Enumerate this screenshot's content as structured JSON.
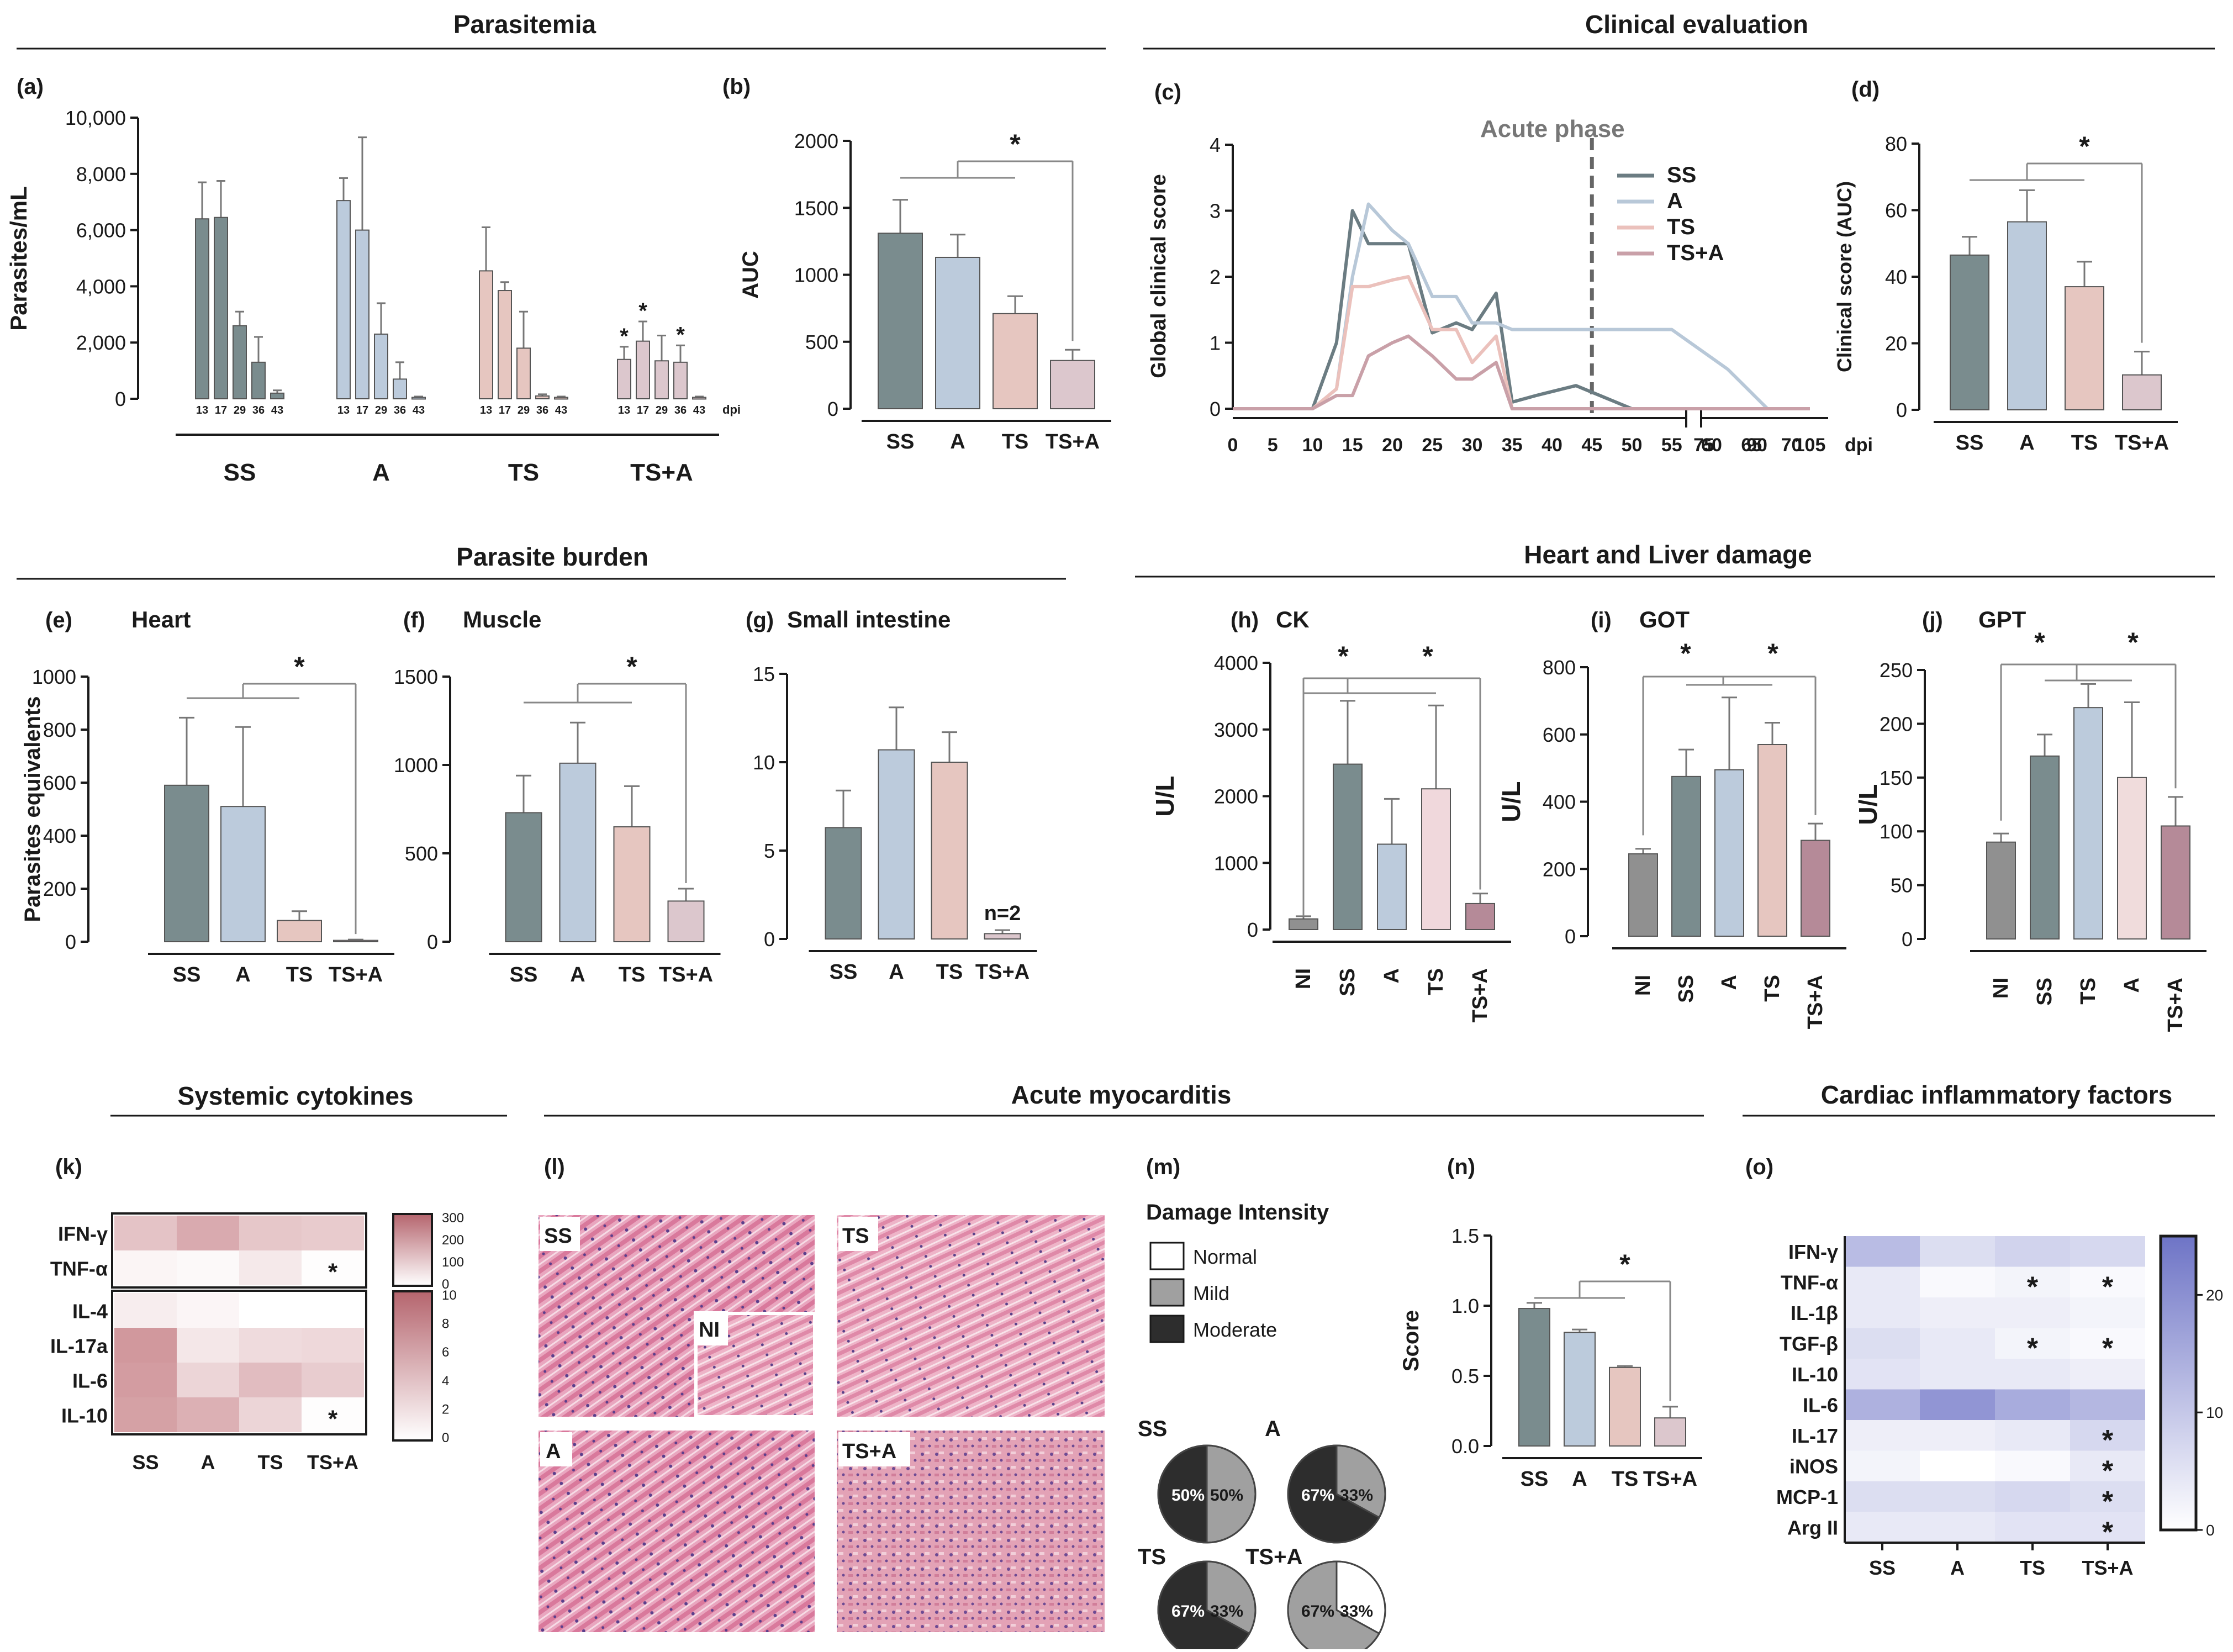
{
  "sections": {
    "parasitemia": "Parasitemia",
    "clinical": "Clinical evaluation",
    "burden": "Parasite burden",
    "damage": "Heart and Liver damage",
    "systemic": "Systemic cytokines",
    "myocarditis": "Acute myocarditis",
    "cardiac": "Cardiac inflammatory factors"
  },
  "panel_labels": {
    "a": "(a)",
    "b": "(b)",
    "c": "(c)",
    "d": "(d)",
    "e": "(e)",
    "f": "(f)",
    "g": "(g)",
    "h": "(h)",
    "i": "(i)",
    "j": "(j)",
    "k": "(k)",
    "l": "(l)",
    "m": "(m)",
    "n": "(n)",
    "o": "(o)"
  },
  "colors": {
    "SS": "#7a8c8e",
    "A": "#bccbdc",
    "TS": "#e6c6c0",
    "TS+A": "#dcc7cd",
    "NI": "#909090",
    "TS_j": "#e8cfd0",
    "A_j": "#f0dcdc",
    "TSA_h": "#b58a98",
    "TS_h": "#f0d8dc",
    "ss_line": "#6b7c82",
    "a_line": "#b8c8d8",
    "ts_line": "#ebc1bc",
    "tsa_line": "#c9a0a8",
    "pie_dark": "#2d2d2d",
    "pie_mild": "#a0a0a0",
    "heat_k": "#d9a9ad",
    "heat_o": "#7f85cd"
  },
  "chart_data": [
    {
      "id": "a",
      "type": "bar",
      "title": "",
      "ylabel": "Parasites/mL",
      "xlabel": "dpi",
      "ylim": [
        0,
        10000
      ],
      "yticks": [
        "0",
        "2,000",
        "4,000",
        "6,000",
        "8,000",
        "10,000"
      ],
      "dpi_labels": [
        "13",
        "17",
        "29",
        "36",
        "43"
      ],
      "groups": [
        {
          "name": "SS",
          "values": [
            6400,
            6450,
            2600,
            1300,
            200
          ],
          "errors": [
            1300,
            1300,
            500,
            900,
            100
          ]
        },
        {
          "name": "A",
          "values": [
            7050,
            6000,
            2300,
            700,
            50
          ],
          "errors": [
            800,
            3300,
            1100,
            600,
            30
          ]
        },
        {
          "name": "TS",
          "values": [
            4550,
            3850,
            1800,
            100,
            50
          ],
          "errors": [
            1550,
            300,
            1300,
            60,
            30
          ]
        },
        {
          "name": "TS+A",
          "values": [
            1400,
            2050,
            1350,
            1300,
            50
          ],
          "errors": [
            450,
            700,
            900,
            600,
            30
          ],
          "stars": [
            true,
            true,
            false,
            true,
            false
          ]
        }
      ],
      "star": "*"
    },
    {
      "id": "b",
      "type": "bar",
      "ylabel": "AUC",
      "ylim": [
        0,
        2000
      ],
      "yticks": [
        "0",
        "500",
        "1000",
        "1500",
        "2000"
      ],
      "categories": [
        "SS",
        "A",
        "TS",
        "TS+A"
      ],
      "values": [
        1310,
        1130,
        710,
        360
      ],
      "errors": [
        250,
        170,
        130,
        80
      ],
      "sig": "*"
    },
    {
      "id": "c",
      "type": "line",
      "ylabel": "Global clinical score",
      "xlabel": "dpi",
      "ylim": [
        0,
        4
      ],
      "yticks": [
        "0",
        "1",
        "2",
        "3",
        "4"
      ],
      "xticks": [
        "0",
        "5",
        "10",
        "15",
        "20",
        "25",
        "30",
        "35",
        "40",
        "45",
        "50",
        "55",
        "60",
        "65",
        "70",
        "75",
        "90",
        "105"
      ],
      "annotation": "Acute phase",
      "phase_x": 45,
      "series": [
        {
          "name": "SS",
          "x": [
            0,
            10,
            13,
            15,
            17,
            20,
            22,
            25,
            28,
            30,
            33,
            35,
            38,
            43,
            47,
            50,
            105
          ],
          "y": [
            0,
            0,
            1.0,
            3.0,
            2.5,
            2.5,
            2.5,
            1.15,
            1.3,
            1.2,
            1.75,
            0.1,
            0.2,
            0.35,
            0.15,
            0,
            0
          ]
        },
        {
          "name": "A",
          "x": [
            0,
            10,
            13,
            15,
            17,
            20,
            22,
            25,
            28,
            30,
            33,
            35,
            38,
            50,
            55,
            62,
            67,
            105
          ],
          "y": [
            0,
            0,
            0.3,
            2.0,
            3.1,
            2.7,
            2.5,
            1.7,
            1.7,
            1.3,
            1.3,
            1.2,
            1.2,
            1.2,
            1.2,
            0.6,
            0,
            0
          ]
        },
        {
          "name": "TS",
          "x": [
            0,
            10,
            13,
            15,
            17,
            20,
            22,
            25,
            28,
            30,
            33,
            35,
            38,
            105
          ],
          "y": [
            0,
            0,
            0.3,
            1.85,
            1.85,
            1.95,
            2.0,
            1.2,
            1.2,
            0.7,
            1.1,
            0,
            0,
            0
          ]
        },
        {
          "name": "TS+A",
          "x": [
            0,
            10,
            13,
            15,
            17,
            20,
            22,
            25,
            28,
            30,
            33,
            35,
            38,
            105
          ],
          "y": [
            0,
            0,
            0.2,
            0.2,
            0.8,
            1.0,
            1.1,
            0.8,
            0.45,
            0.45,
            0.7,
            0,
            0,
            0
          ]
        }
      ]
    },
    {
      "id": "d",
      "type": "bar",
      "ylabel": "Clinical score (AUC)",
      "ylim": [
        0,
        80
      ],
      "yticks": [
        "0",
        "20",
        "40",
        "60",
        "80"
      ],
      "categories": [
        "SS",
        "A",
        "TS",
        "TS+A"
      ],
      "values": [
        46.5,
        56.5,
        37,
        10.5
      ],
      "errors": [
        5.5,
        9.5,
        7.5,
        7
      ],
      "sig": "*"
    },
    {
      "id": "e",
      "type": "bar",
      "title": "Heart",
      "ylabel": "Parasites equivalents",
      "ylim": [
        0,
        1000
      ],
      "yticks": [
        "0",
        "200",
        "400",
        "600",
        "800",
        "1000"
      ],
      "categories": [
        "SS",
        "A",
        "TS",
        "TS+A"
      ],
      "values": [
        590,
        510,
        80,
        5
      ],
      "errors": [
        255,
        300,
        35,
        3
      ],
      "sig": "*"
    },
    {
      "id": "f",
      "type": "bar",
      "title": "Muscle",
      "ylim": [
        0,
        1500
      ],
      "yticks": [
        "0",
        "500",
        "1000",
        "1500"
      ],
      "categories": [
        "SS",
        "A",
        "TS",
        "TS+A"
      ],
      "values": [
        730,
        1010,
        650,
        230
      ],
      "errors": [
        210,
        230,
        230,
        70
      ],
      "sig": "*"
    },
    {
      "id": "g",
      "type": "bar",
      "title": "Small intestine",
      "ylim": [
        0,
        15
      ],
      "yticks": [
        "0",
        "5",
        "10",
        "15"
      ],
      "categories": [
        "SS",
        "A",
        "TS",
        "TS+A"
      ],
      "values": [
        6.3,
        10.7,
        10.0,
        0.3
      ],
      "errors": [
        2.1,
        2.4,
        1.7,
        0.2
      ],
      "note": "n=2"
    },
    {
      "id": "h",
      "type": "bar",
      "title": "CK",
      "ylabel": "U/L",
      "ylim": [
        0,
        4000
      ],
      "yticks": [
        "0",
        "1000",
        "2000",
        "3000",
        "4000"
      ],
      "categories": [
        "NI",
        "SS",
        "A",
        "TS",
        "TS+A"
      ],
      "values": [
        160,
        2480,
        1280,
        2110,
        390
      ],
      "errors": [
        40,
        950,
        680,
        1250,
        150
      ],
      "sig": "*"
    },
    {
      "id": "i",
      "type": "bar",
      "title": "GOT",
      "ylabel": "U/L",
      "ylim": [
        0,
        800
      ],
      "yticks": [
        "0",
        "200",
        "400",
        "600",
        "800"
      ],
      "categories": [
        "NI",
        "SS",
        "A",
        "TS",
        "TS+A"
      ],
      "values": [
        245,
        475,
        495,
        570,
        285
      ],
      "errors": [
        15,
        80,
        215,
        65,
        50
      ],
      "sig": "*"
    },
    {
      "id": "j",
      "type": "bar",
      "title": "GPT",
      "ylabel": "U/L",
      "ylim": [
        0,
        250
      ],
      "yticks": [
        "0",
        "50",
        "100",
        "150",
        "200",
        "250"
      ],
      "categories": [
        "NI",
        "SS",
        "TS",
        "A",
        "TS+A"
      ],
      "values": [
        90,
        170,
        215,
        150,
        105
      ],
      "errors": [
        8,
        20,
        22,
        70,
        27
      ],
      "sig": "*"
    },
    {
      "id": "k",
      "type": "heatmap",
      "columns": [
        "SS",
        "A",
        "TS",
        "TS+A"
      ],
      "rows_top": [
        "IFN-γ",
        "TNF-α"
      ],
      "values_top": [
        [
          150,
          210,
          140,
          130
        ],
        [
          25,
          15,
          55,
          5
        ]
      ],
      "stars_top": [
        [
          false,
          false,
          false,
          false
        ],
        [
          false,
          false,
          false,
          true
        ]
      ],
      "scale_top": [
        "300",
        "200",
        "100",
        "0"
      ],
      "scale_top_max": 300,
      "rows_bottom": [
        "IL-4",
        "IL-17a",
        "IL-6",
        "IL-10"
      ],
      "values_bottom": [
        [
          1.5,
          0.8,
          0,
          0
        ],
        [
          8.5,
          2,
          3,
          3.2
        ],
        [
          8.2,
          3.5,
          5.5,
          4.2
        ],
        [
          7.8,
          6.5,
          3.5,
          0.2
        ]
      ],
      "stars_bottom": [
        [
          false,
          false,
          false,
          false
        ],
        [
          false,
          false,
          false,
          false
        ],
        [
          false,
          false,
          false,
          false
        ],
        [
          false,
          false,
          false,
          true
        ]
      ],
      "scale_bottom": [
        "10",
        "8",
        "6",
        "4",
        "2",
        "0"
      ],
      "scale_bottom_max": 10,
      "star": "*"
    },
    {
      "id": "m",
      "type": "pie",
      "title": "Damage Intensity",
      "legend": [
        "Normal",
        "Mild",
        "Moderate"
      ],
      "pies": [
        {
          "name": "SS",
          "moderate": 50,
          "mild": 50,
          "normal": 0,
          "labels": [
            "50%",
            "50%"
          ]
        },
        {
          "name": "A",
          "moderate": 67,
          "mild": 33,
          "normal": 0,
          "labels": [
            "67%",
            "33%"
          ]
        },
        {
          "name": "TS",
          "moderate": 67,
          "mild": 33,
          "normal": 0,
          "labels": [
            "67%",
            "33%"
          ]
        },
        {
          "name": "TS+A",
          "moderate": 0,
          "mild": 67,
          "normal": 33,
          "labels": [
            "67%",
            "33%"
          ]
        }
      ]
    },
    {
      "id": "n",
      "type": "bar",
      "ylabel": "Score",
      "ylim": [
        0,
        1.5
      ],
      "yticks": [
        "0.0",
        "0.5",
        "1.0",
        "1.5"
      ],
      "categories": [
        "SS",
        "A",
        "TS",
        "TS+A"
      ],
      "values": [
        0.98,
        0.81,
        0.56,
        0.2
      ],
      "errors": [
        0.04,
        0.02,
        0.01,
        0.08
      ],
      "sig": "*"
    },
    {
      "id": "o",
      "type": "heatmap",
      "columns": [
        "SS",
        "A",
        "TS",
        "TS+A"
      ],
      "rows": [
        "IFN-γ",
        "TNF-α",
        "IL-1β",
        "TGF-β",
        "IL-10",
        "IL-6",
        "IL-17",
        "iNOS",
        "MCP-1",
        "Arg II"
      ],
      "values": [
        [
          12,
          6,
          8,
          7
        ],
        [
          4,
          1,
          2,
          1
        ],
        [
          4,
          3,
          3,
          2
        ],
        [
          6,
          4,
          2,
          1
        ],
        [
          5,
          4,
          4,
          3
        ],
        [
          14,
          19,
          15,
          13
        ],
        [
          3,
          3,
          4,
          7
        ],
        [
          2,
          0,
          1,
          4
        ],
        [
          6,
          6,
          7,
          6
        ],
        [
          4,
          4,
          5,
          5
        ]
      ],
      "stars": [
        [
          false,
          false,
          false,
          false
        ],
        [
          false,
          false,
          true,
          true
        ],
        [
          false,
          false,
          false,
          false
        ],
        [
          false,
          false,
          true,
          true
        ],
        [
          false,
          false,
          false,
          false
        ],
        [
          false,
          false,
          false,
          false
        ],
        [
          false,
          false,
          false,
          true
        ],
        [
          false,
          false,
          false,
          true
        ],
        [
          false,
          false,
          false,
          true
        ],
        [
          false,
          false,
          false,
          true
        ]
      ],
      "scale": [
        "20",
        "10",
        "0"
      ],
      "scale_max": 25,
      "star": "*"
    }
  ],
  "histology": {
    "labels": [
      "SS",
      "TS",
      "NI",
      "A",
      "TS+A"
    ]
  }
}
